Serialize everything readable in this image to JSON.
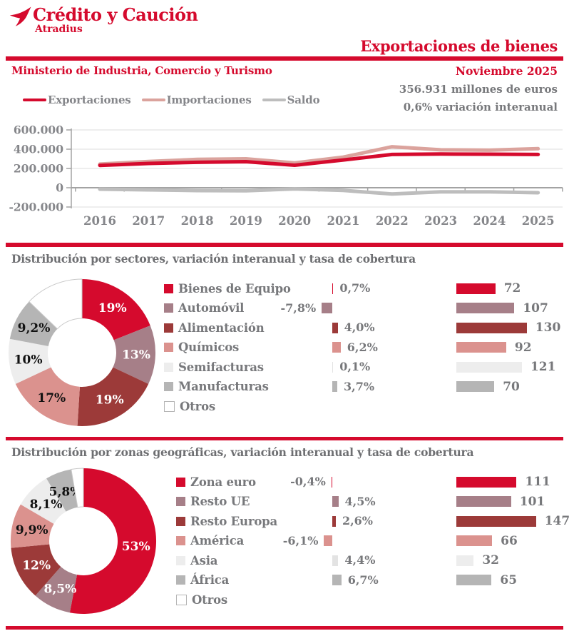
{
  "header": {
    "logo_title": "Crédito y Caución",
    "logo_subtitle": "Atradius",
    "report_title": "Exportaciones de bienes",
    "source": "Ministerio de Industria, Comercio y Turismo",
    "date": "Noviembre 2025",
    "stat_value": "356.931 millones de euros",
    "stat_variation": "0,6% variación interanual"
  },
  "colors": {
    "brand_red": "#d50a2d",
    "mauve": "#a67f88",
    "dark_red": "#9c3a39",
    "salmon": "#db928e",
    "light_gray": "#ededed",
    "mid_gray": "#b5b5b5",
    "line_salmon": "#dba39d",
    "line_gray": "#bdbdbd",
    "text_gray": "#77787b"
  },
  "chart_data": [
    {
      "id": "trade_evolution",
      "type": "line",
      "title": "",
      "x": [
        2016,
        2017,
        2018,
        2019,
        2020,
        2021,
        2022,
        2023,
        2024,
        2025
      ],
      "series": [
        {
          "name": "Exportaciones",
          "color": "#d50a2d",
          "values": [
            232000,
            252000,
            264000,
            270000,
            233000,
            288000,
            345000,
            350000,
            348000,
            345000
          ]
        },
        {
          "name": "Importaciones",
          "color": "#dba39d",
          "values": [
            245000,
            272000,
            294000,
            300000,
            258000,
            318000,
            425000,
            393000,
            390000,
            405000
          ]
        },
        {
          "name": "Saldo",
          "color": "#bdbdbd",
          "values": [
            -15000,
            -22000,
            -30000,
            -32000,
            -12000,
            -28000,
            -65000,
            -42000,
            -42000,
            -52000
          ]
        }
      ],
      "ylim": [
        -200000,
        600000
      ],
      "yticks": [
        {
          "value": 600000,
          "label": "600.000"
        },
        {
          "value": 400000,
          "label": "400.000"
        },
        {
          "value": 200000,
          "label": "200.000"
        },
        {
          "value": 0,
          "label": "0"
        },
        {
          "value": -200000,
          "label": "-200.000"
        }
      ],
      "legend_position": "top",
      "grid": true
    },
    {
      "id": "sectors",
      "type": "donut",
      "title": "Distribución por sectores,  variación interanual y tasa de cobertura",
      "value_columns": [
        "cuota",
        "variación interanual",
        "tasa de cobertura"
      ],
      "rows": [
        {
          "label": "Bienes de Equipo",
          "share_pct": 19,
          "share_label": "19%",
          "variation_pct": 0.7,
          "variation_label": "0,7%",
          "coverage": 72,
          "color": "#d50a2d",
          "slice_text_color": "#ffffff",
          "outlined": false
        },
        {
          "label": "Automóvil",
          "share_pct": 13,
          "share_label": "13%",
          "variation_pct": -7.8,
          "variation_label": "-7,8%",
          "coverage": 107,
          "color": "#a67f88",
          "slice_text_color": "#ffffff",
          "outlined": false
        },
        {
          "label": "Alimentación",
          "share_pct": 19,
          "share_label": "19%",
          "variation_pct": 4.0,
          "variation_label": "4,0%",
          "coverage": 130,
          "color": "#9c3a39",
          "slice_text_color": "#ffffff",
          "outlined": false
        },
        {
          "label": "Químicos",
          "share_pct": 17,
          "share_label": "17%",
          "variation_pct": 6.2,
          "variation_label": "6,2%",
          "coverage": 92,
          "color": "#db928e",
          "slice_text_color": "#111111",
          "outlined": false
        },
        {
          "label": "Semifacturas",
          "share_pct": 10,
          "share_label": "10%",
          "variation_pct": 0.1,
          "variation_label": "0,1%",
          "coverage": 121,
          "color": "#ededed",
          "slice_text_color": "#111111",
          "outlined": false
        },
        {
          "label": "Manufacturas",
          "share_pct": 9.2,
          "share_label": "9,2%",
          "variation_pct": 3.7,
          "variation_label": "3,7%",
          "coverage": 70,
          "color": "#b5b5b5",
          "slice_text_color": "#111111",
          "outlined": false
        },
        {
          "label": "Otros",
          "share_pct": 12.8,
          "share_label": "",
          "variation_pct": null,
          "variation_label": "",
          "coverage": null,
          "color": "#ffffff",
          "slice_text_color": "#111111",
          "outlined": true
        }
      ]
    },
    {
      "id": "zones",
      "type": "donut",
      "title": "Distribución por zonas geográficas, variación interanual y tasa de cobertura",
      "value_columns": [
        "cuota",
        "variación interanual",
        "tasa de cobertura"
      ],
      "rows": [
        {
          "label": "Zona euro",
          "share_pct": 53,
          "share_label": "53%",
          "variation_pct": -0.4,
          "variation_label": "-0,4%",
          "coverage": 111,
          "color": "#d50a2d",
          "slice_text_color": "#ffffff",
          "outlined": false
        },
        {
          "label": "Resto UE",
          "share_pct": 8.5,
          "share_label": "8,5%",
          "variation_pct": 4.5,
          "variation_label": "4,5%",
          "coverage": 101,
          "color": "#a67f88",
          "slice_text_color": "#ffffff",
          "outlined": false
        },
        {
          "label": "Resto Europa",
          "share_pct": 12,
          "share_label": "12%",
          "variation_pct": 2.6,
          "variation_label": "2,6%",
          "coverage": 147,
          "color": "#9c3a39",
          "slice_text_color": "#ffffff",
          "outlined": false
        },
        {
          "label": "América",
          "share_pct": 9.9,
          "share_label": "9,9%",
          "variation_pct": -6.1,
          "variation_label": "-6,1%",
          "coverage": 66,
          "color": "#db928e",
          "slice_text_color": "#111111",
          "outlined": false
        },
        {
          "label": "Asia",
          "share_pct": 8.1,
          "share_label": "8,1%",
          "variation_pct": 4.4,
          "variation_label": "4,4%",
          "coverage": 32,
          "color": "#ededed",
          "slice_text_color": "#111111",
          "outlined": false
        },
        {
          "label": "África",
          "share_pct": 5.8,
          "share_label": "5,8%",
          "variation_pct": 6.7,
          "variation_label": "6,7%",
          "coverage": 65,
          "color": "#b5b5b5",
          "slice_text_color": "#111111",
          "outlined": false
        },
        {
          "label": "Otros",
          "share_pct": 2.7,
          "share_label": "",
          "variation_pct": null,
          "variation_label": "",
          "coverage": null,
          "color": "#ffffff",
          "slice_text_color": "#111111",
          "outlined": true
        }
      ]
    }
  ]
}
